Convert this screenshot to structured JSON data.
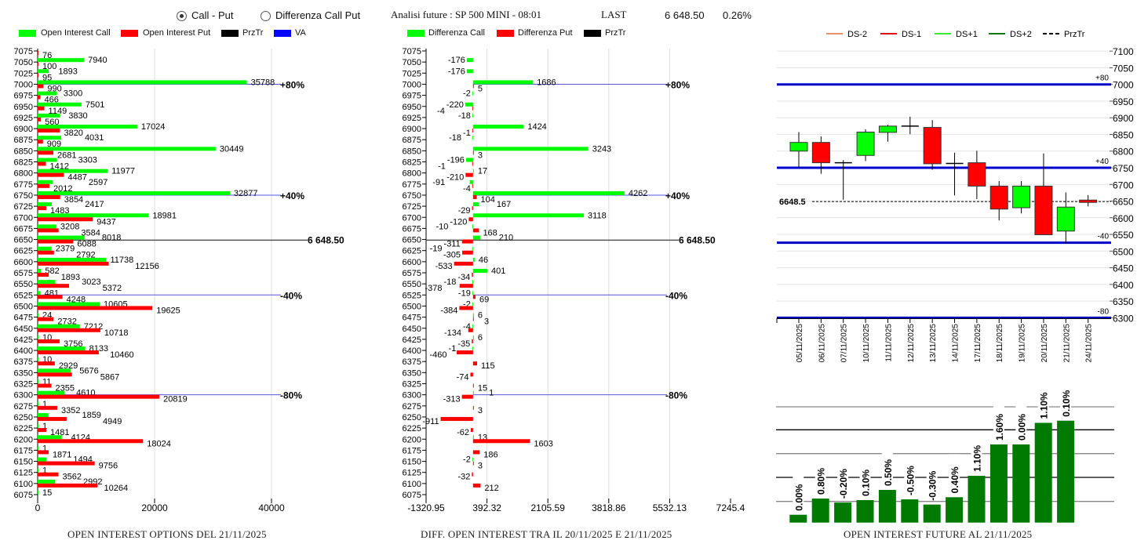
{
  "header": {
    "radio_options": [
      {
        "label": "Call - Put",
        "checked": true
      },
      {
        "label": "Differenza Call Put",
        "checked": false
      }
    ],
    "analysis_title": "Analisi future : SP 500 MINI - 08:01",
    "last_label": "LAST",
    "last_value": "6 648.50",
    "change_pct": "0.26%"
  },
  "colors": {
    "call": "#00ff00",
    "put": "#ff0000",
    "przTr": "#000000",
    "va": "#0000ff",
    "ds_minus2": "#e8906a",
    "ds_minus1": "#dd1111",
    "ds_plus1": "#33ee33",
    "ds_plus2": "#117711",
    "future_bar": "#007a00"
  },
  "chart_data": [
    {
      "type": "bar",
      "orientation": "horizontal",
      "title": "OPEN INTEREST OPTIONS DEL 21/11/2025",
      "legend": [
        "Open Interest Call",
        "Open Interest Put",
        "PrzTr",
        "VA"
      ],
      "legend_placement": "top",
      "x_ticks": [
        "0",
        "20000",
        "40000"
      ],
      "xlim": [
        0,
        55000
      ],
      "grid": "vertical",
      "categories": [
        7075,
        7050,
        7025,
        7000,
        6975,
        6950,
        6925,
        6900,
        6875,
        6850,
        6825,
        6800,
        6775,
        6750,
        6725,
        6700,
        6675,
        6650,
        6625,
        6600,
        6575,
        6550,
        6525,
        6500,
        6475,
        6450,
        6425,
        6400,
        6375,
        6350,
        6325,
        6300,
        6275,
        6250,
        6225,
        6200,
        6175,
        6150,
        6125,
        6100,
        6075
      ],
      "series": [
        {
          "name": "Open Interest Call",
          "values": [
            null,
            7940,
            1893,
            35788,
            3300,
            7501,
            3830,
            17024,
            4031,
            30449,
            3303,
            11977,
            2597,
            32877,
            2417,
            18981,
            3208,
            8018,
            2379,
            11738,
            582,
            3023,
            481,
            10605,
            24,
            7212,
            10,
            8133,
            10,
            5676,
            11,
            4610,
            1,
            1859,
            1,
            4124,
            1,
            1494,
            1,
            2992,
            15
          ]
        },
        {
          "name": "Open Interest Put",
          "values": [
            76,
            100,
            95,
            990,
            466,
            1149,
            560,
            3820,
            909,
            2681,
            1412,
            4487,
            2012,
            3854,
            1483,
            9437,
            3584,
            6088,
            2792,
            12156,
            1893,
            5372,
            4248,
            19625,
            2732,
            10718,
            3756,
            10460,
            2929,
            5867,
            2355,
            20819,
            3352,
            4949,
            1481,
            18024,
            1871,
            9756,
            3562,
            10264,
            null
          ]
        }
      ],
      "reference_lines": [
        {
          "strike": 7000,
          "label": "+80%",
          "kind": "VA"
        },
        {
          "strike": 6750,
          "label": "+40%",
          "kind": "VA"
        },
        {
          "strike": 6648.5,
          "label": "6 648.50",
          "kind": "PrzTr"
        },
        {
          "strike": 6525,
          "label": "-40%",
          "kind": "VA"
        },
        {
          "strike": 6300,
          "label": "-80%",
          "kind": "VA"
        }
      ]
    },
    {
      "type": "bar",
      "orientation": "horizontal",
      "title": "DIFF. OPEN INTEREST TRA IL 20/11/2025 E 21/11/2025",
      "legend": [
        "Differenza Call",
        "Differenza Put",
        "PrzTr"
      ],
      "legend_placement": "top",
      "x_ticks": [
        "-1320.95",
        "392.32",
        "2105.59",
        "3818.86",
        "5532.13",
        "7245.4"
      ],
      "xlim": [
        -1320.95,
        7245.4
      ],
      "grid": "vertical",
      "categories": [
        7075,
        7050,
        7025,
        7000,
        6975,
        6950,
        6925,
        6900,
        6875,
        6850,
        6825,
        6800,
        6775,
        6750,
        6725,
        6700,
        6675,
        6650,
        6625,
        6600,
        6575,
        6550,
        6525,
        6500,
        6475,
        6450,
        6425,
        6400,
        6375,
        6350,
        6325,
        6300,
        6275,
        6250,
        6225,
        6200,
        6175,
        6150,
        6125,
        6100,
        6075
      ],
      "series": [
        {
          "name": "Differenza Call",
          "values": [
            null,
            -176,
            -176,
            1686,
            -2,
            -220,
            -18,
            1424,
            -18,
            3243,
            -196,
            17,
            -91,
            4262,
            167,
            3118,
            -10,
            210,
            -19,
            46,
            401,
            -18,
            -19,
            -2,
            6,
            -4,
            6,
            -1,
            null,
            null,
            null,
            1,
            null,
            null,
            null,
            13,
            null,
            -2,
            null,
            null,
            null
          ]
        },
        {
          "name": "Differenza Put",
          "values": [
            null,
            null,
            null,
            5,
            null,
            -4,
            null,
            -1,
            null,
            3,
            -1,
            -210,
            -4,
            104,
            -29,
            -120,
            168,
            -311,
            -305,
            -533,
            -34,
            -378,
            69,
            -384,
            3,
            -134,
            -35,
            -460,
            115,
            -74,
            15,
            -313,
            3,
            -911,
            -62,
            1603,
            186,
            3,
            -32,
            212,
            null
          ]
        }
      ],
      "reference_lines": [
        {
          "strike": 7000,
          "label": "+80%",
          "kind": "VA"
        },
        {
          "strike": 6750,
          "label": "+40%",
          "kind": "VA"
        },
        {
          "strike": 6648.5,
          "label": "6 648.50",
          "kind": "PrzTr"
        },
        {
          "strike": 6525,
          "label": "-40%",
          "kind": "VA"
        },
        {
          "strike": 6300,
          "label": "-80%",
          "kind": "VA"
        }
      ]
    },
    {
      "type": "candlestick",
      "legend": [
        "DS-2",
        "DS-1",
        "DS+1",
        "DS+2",
        "PrzTr"
      ],
      "legend_placement": "top",
      "ylim": [
        6300,
        7100
      ],
      "y_ticks": [
        7100,
        7050,
        7000,
        6950,
        6900,
        6850,
        6800,
        6750,
        6700,
        6650,
        6600,
        6550,
        6500,
        6450,
        6400,
        6350,
        6300
      ],
      "grid": "horizontal",
      "dates": [
        "05/11/2025",
        "06/11/2025",
        "07/11/2025",
        "10/11/2025",
        "11/11/2025",
        "12/11/2025",
        "13/11/2025",
        "14/11/2025",
        "17/11/2025",
        "18/11/2025",
        "19/11/2025",
        "20/11/2025",
        "21/11/2025",
        "24/11/2025"
      ],
      "ohlc": [
        [
          6800,
          6857,
          6752,
          6826
        ],
        [
          6826,
          6844,
          6732,
          6765
        ],
        [
          6765,
          6773,
          6654,
          6765
        ],
        [
          6787,
          6865,
          6770,
          6857
        ],
        [
          6856,
          6879,
          6828,
          6875
        ],
        [
          6875,
          6903,
          6851,
          6875
        ],
        [
          6871,
          6893,
          6744,
          6762
        ],
        [
          6763,
          6795,
          6667,
          6763
        ],
        [
          6765,
          6801,
          6656,
          6695
        ],
        [
          6695,
          6710,
          6592,
          6626
        ],
        [
          6630,
          6710,
          6613,
          6695
        ],
        [
          6695,
          6793,
          6549,
          6549
        ],
        [
          6560,
          6676,
          6524,
          6632
        ],
        [
          6653,
          6668,
          6634,
          6646
        ]
      ],
      "levels": [
        {
          "value": 7000,
          "label": "+80"
        },
        {
          "value": 6750,
          "label": "+40"
        },
        {
          "value": 6525,
          "label": "-40"
        },
        {
          "value": 6300,
          "label": "-80"
        }
      ],
      "price_line": {
        "value": 6648.5,
        "label": "6648.5"
      }
    },
    {
      "type": "bar",
      "title": "OPEN INTEREST FUTURE AL 21/11/2025",
      "grid": "horizontal",
      "relative_level_pct_of_max": [
        7.7,
        23.6,
        19.7,
        22.1,
        32.1,
        22.8,
        17.7,
        24.9,
        45.9,
        76.7,
        76.7,
        97.9,
        100
      ],
      "data_labels": [
        "0.00%",
        "0.80%",
        "-0.20%",
        "0.10%",
        "0.50%",
        "-0.50%",
        "-0.30%",
        "0.40%",
        "1.10%",
        "1.60%",
        "0.00%",
        "1.10%",
        "0.10%"
      ]
    }
  ]
}
